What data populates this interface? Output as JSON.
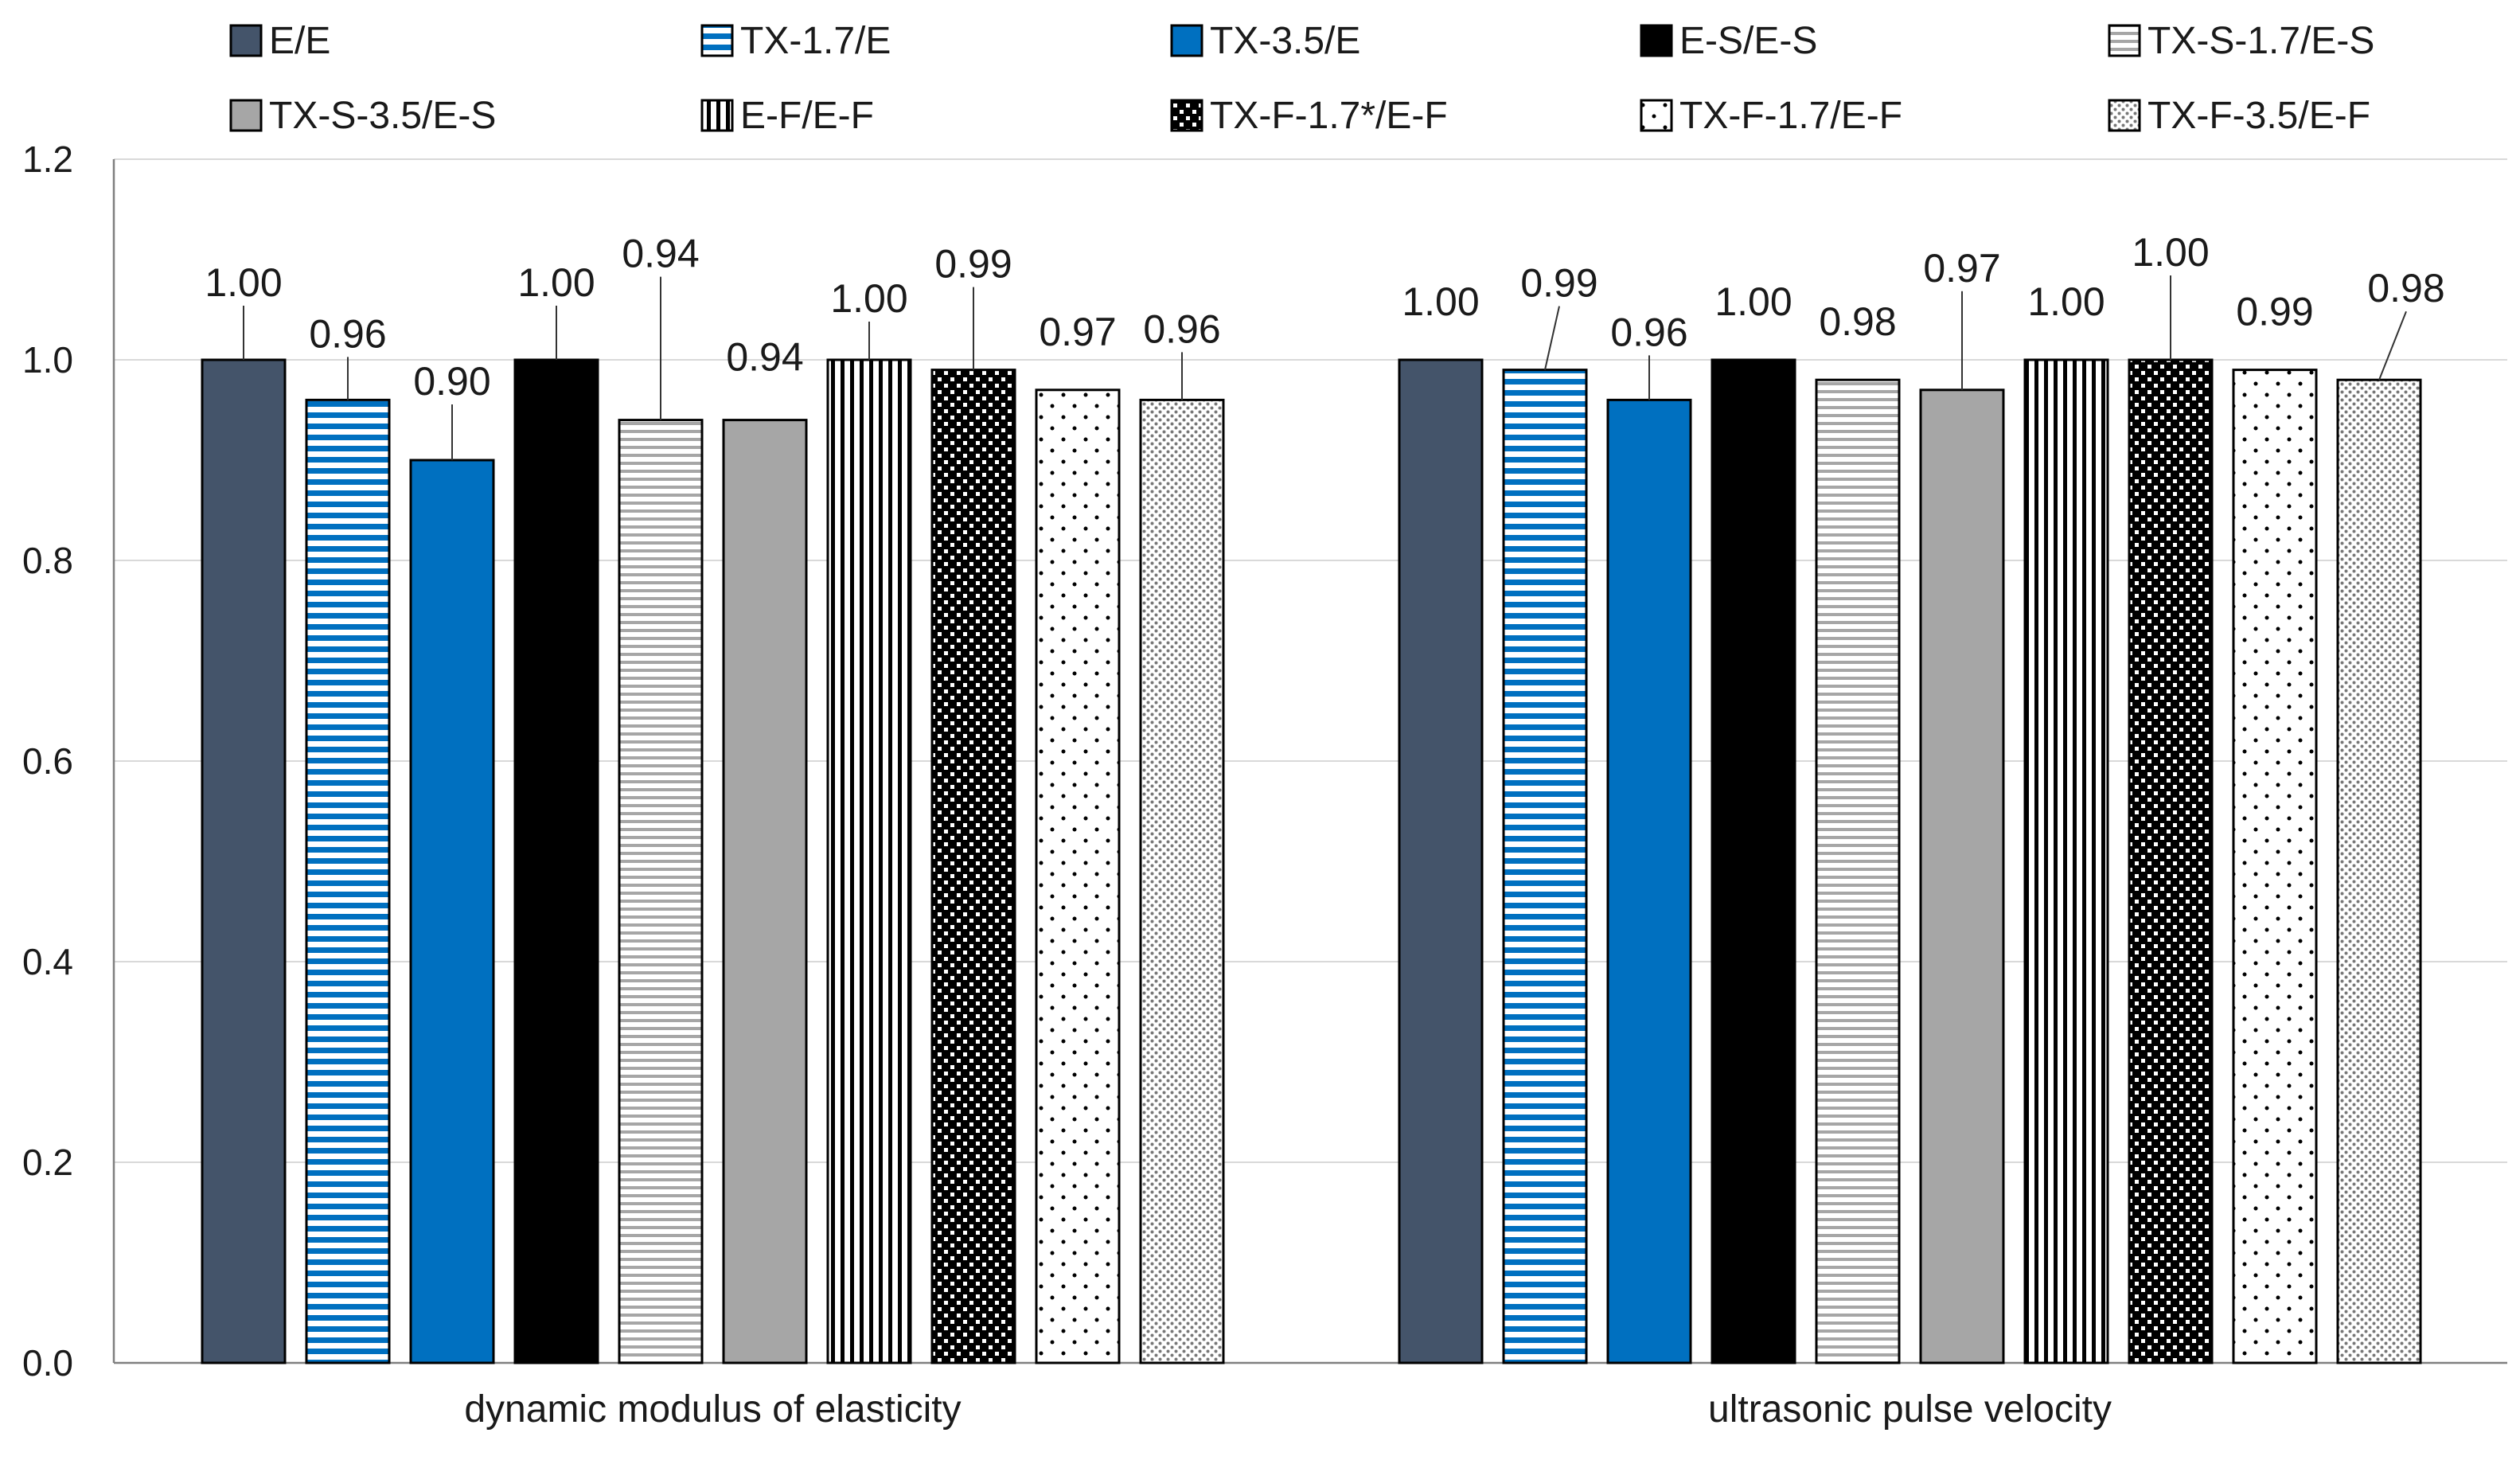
{
  "chart_data": {
    "type": "bar",
    "title": "",
    "xlabel": "",
    "ylabel": "",
    "ylim": [
      0,
      1.2
    ],
    "yticks": [
      "0.0",
      "0.2",
      "0.4",
      "0.6",
      "0.8",
      "1.0",
      "1.2"
    ],
    "gridlines": true,
    "legend_position": "top",
    "categories": [
      "dynamic modulus of elasticity",
      "ultrasonic pulse velocity"
    ],
    "series": [
      {
        "name": "E/E",
        "values": [
          1.0,
          1.0
        ],
        "labels": [
          "1.00",
          "1.00"
        ],
        "fill": "#44546a",
        "pattern": "solid"
      },
      {
        "name": "TX-1.7/E",
        "values": [
          0.96,
          0.99
        ],
        "labels": [
          "0.96",
          "0.99"
        ],
        "fill": "#0070c0",
        "pattern": "hstripe-blue"
      },
      {
        "name": "TX-3.5/E",
        "values": [
          0.9,
          0.96
        ],
        "labels": [
          "0.90",
          "0.96"
        ],
        "fill": "#0070c0",
        "pattern": "solid"
      },
      {
        "name": "E-S/E-S",
        "values": [
          1.0,
          1.0
        ],
        "labels": [
          "1.00",
          "1.00"
        ],
        "fill": "#000000",
        "pattern": "solid"
      },
      {
        "name": "TX-S-1.7/E-S",
        "values": [
          0.94,
          0.98
        ],
        "labels": [
          "0.94",
          "0.98"
        ],
        "fill": "#a6a6a6",
        "pattern": "hstripe-gray"
      },
      {
        "name": "TX-S-3.5/E-S",
        "values": [
          0.94,
          0.97
        ],
        "labels": [
          "0.94",
          "0.97"
        ],
        "fill": "#a6a6a6",
        "pattern": "solid"
      },
      {
        "name": "E-F/E-F",
        "values": [
          1.0,
          1.0
        ],
        "labels": [
          "1.00",
          "1.00"
        ],
        "fill": "#000000",
        "pattern": "vstripe"
      },
      {
        "name": "TX-F-1.7*/E-F",
        "values": [
          0.99,
          1.0
        ],
        "labels": [
          "0.99",
          "1.00"
        ],
        "fill": "#000000",
        "pattern": "dots-white"
      },
      {
        "name": "TX-F-1.7/E-F",
        "values": [
          0.97,
          0.99
        ],
        "labels": [
          "0.97",
          "0.99"
        ],
        "fill": "#ffffff",
        "pattern": "dots-sparse"
      },
      {
        "name": "TX-F-3.5/E-F",
        "values": [
          0.96,
          0.98
        ],
        "labels": [
          "0.96",
          "0.98"
        ],
        "fill": "#ffffff",
        "pattern": "dots-dense"
      }
    ]
  }
}
